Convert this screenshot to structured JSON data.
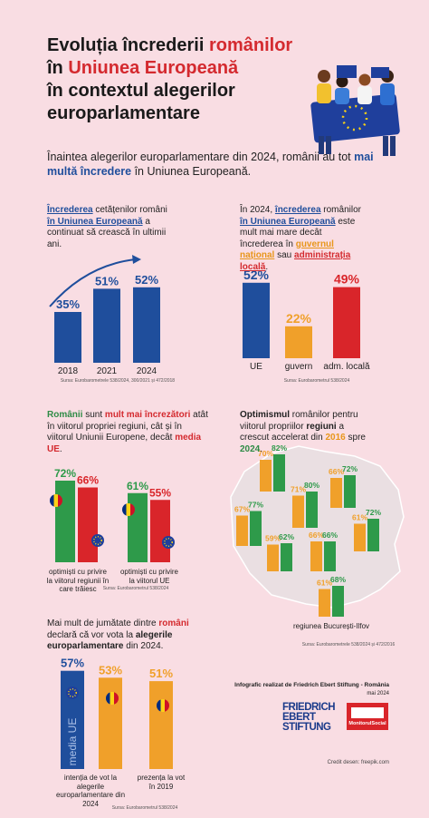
{
  "header": {
    "title": [
      "Evoluția încrederii ",
      "românilor",
      "în ",
      "Uniunea Europeană",
      "în contextul alegerilor europarlamentare"
    ]
  },
  "intro": [
    "Înaintea alegerilor europarlamentare din 2024, românii au tot ",
    "mai multă încredere",
    " în Uniunea Europeană."
  ],
  "chart_data": [
    {
      "type": "bar",
      "text": [
        "Încrederea",
        " cetățenilor români ",
        "în Uniunea Europeană",
        " a continuat să crească în ultimii ani."
      ],
      "categories": [
        "2018",
        "2021",
        "2024"
      ],
      "values": [
        35,
        51,
        52
      ],
      "value_labels": [
        "35%",
        "51%",
        "52%"
      ],
      "color": "#1f4e9c",
      "source": "Sursa: Eurobarometrele 538/2024, 300/2021 și 472/2018"
    },
    {
      "type": "bar",
      "text": [
        "În 2024, ",
        "încrederea",
        " românilor ",
        "în Uniunea Europeană",
        " este mult mai mare decât încrederea în ",
        "guvernul național",
        " sau ",
        "administrația locală",
        "."
      ],
      "categories": [
        "UE",
        "guvern",
        "adm. locală"
      ],
      "values": [
        52,
        22,
        49
      ],
      "value_labels": [
        "52%",
        "22%",
        "49%"
      ],
      "colors": [
        "#1f4e9c",
        "#f0a02a",
        "#d9252a"
      ],
      "source": "Sursa: Eurobarometrul 538/2024"
    },
    {
      "type": "bar",
      "text": [
        "Românii",
        " sunt ",
        "mult mai încrezători",
        " atât în viitorul propriei regiuni, cât și în viitorul Uniunii Europene, decât ",
        "media UE",
        "."
      ],
      "categories": [
        "optimiști cu privire la viitorul regiunii în care trăiesc",
        "optimiști cu privire la viitorul UE"
      ],
      "series": [
        {
          "color": "#2e9a4a",
          "values": [
            72,
            61
          ],
          "value_labels": [
            "72%",
            "61%"
          ]
        },
        {
          "color": "#d9252a",
          "values": [
            66,
            55
          ],
          "value_labels": [
            "66%",
            "55%"
          ]
        }
      ],
      "source": "Sursa: Eurobarometrul 538/2024"
    },
    {
      "type": "bar",
      "text": [
        "Optimismul",
        " românilor pentru viitorul propriilor ",
        "regiuni",
        " a crescut accelerat din ",
        "2016",
        " spre ",
        "2024",
        "."
      ],
      "categories": [
        null,
        null,
        null,
        null,
        null,
        null,
        null,
        "regiunea București-Ilfov"
      ],
      "series": [
        {
          "color": "#f0a02a",
          "values": [
            70,
            66,
            71,
            67,
            61,
            59,
            66,
            61
          ],
          "value_labels": [
            "70%",
            "66%",
            "71%",
            "67%",
            "61%",
            "59%",
            "66%",
            "61%"
          ]
        },
        {
          "color": "#2e9a4a",
          "values": [
            82,
            72,
            80,
            77,
            72,
            62,
            66,
            68
          ],
          "value_labels": [
            "82%",
            "72%",
            "80%",
            "77%",
            "72%",
            "62%",
            "66%",
            "68%"
          ]
        }
      ],
      "source": "Sursa: Eurobarometrele 538/2024 și 472/2016"
    },
    {
      "type": "bar",
      "text": [
        "Mai mult de jumătate dintre ",
        "români",
        " declară că vor vota la ",
        "alegerile europarlamentare",
        " din 2024."
      ],
      "categories": [
        "intenția de vot la alegerile europarlamentare din 2024",
        "prezența la vot în 2019"
      ],
      "series": [
        {
          "name": "media UE",
          "color": "#1f4e9c",
          "values": [
            57,
            null
          ],
          "value_labels": [
            "57%",
            null
          ]
        },
        {
          "color": "#f0a02a",
          "values": [
            53,
            51
          ],
          "value_labels": [
            "53%",
            "51%"
          ]
        }
      ],
      "source": "Sursa: Eurobarometrul 538/2024"
    }
  ],
  "credits": {
    "made_by": "Infografic realizat de Friedrich Ebert Stiftung - România",
    "date": "mai 2024",
    "logo_fes": [
      "FRIEDRICH",
      "EBERT",
      "STIFTUNG"
    ],
    "logo_ms": "MonitorulSocial",
    "drawing_credit": "Credit desen: freepik.com"
  }
}
